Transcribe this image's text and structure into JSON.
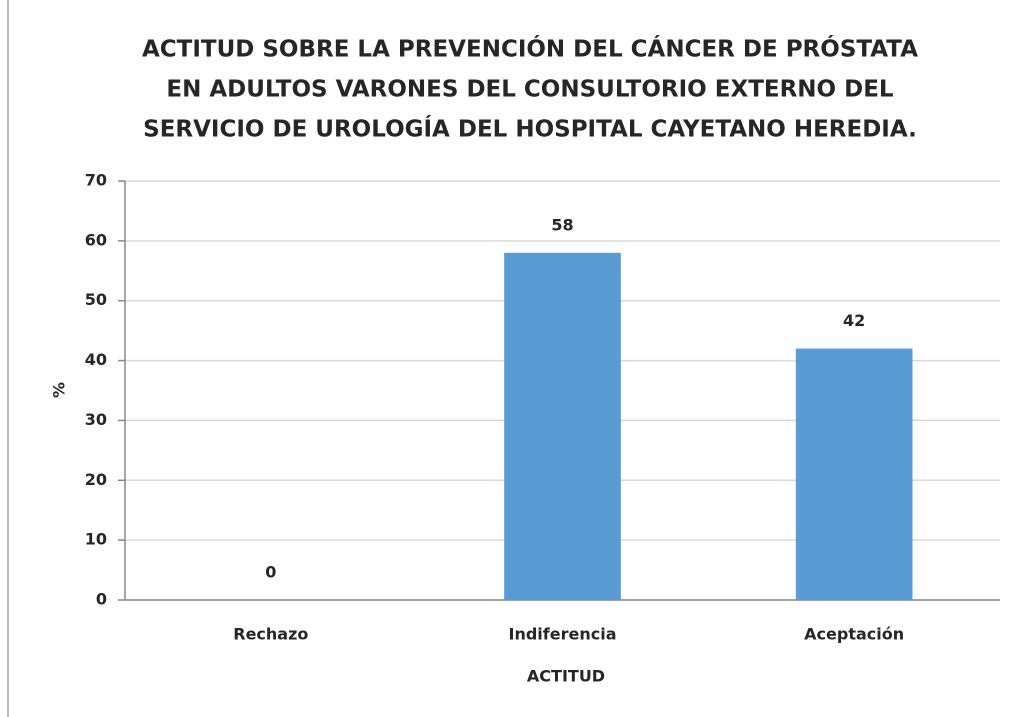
{
  "chart_data": {
    "type": "bar",
    "title": [
      "ACTITUD SOBRE LA PREVENCIÓN DEL CÁNCER DE PRÓSTATA",
      "EN ADULTOS VARONES DEL CONSULTORIO EXTERNO DEL",
      "SERVICIO DE UROLOGÍA DEL HOSPITAL CAYETANO HEREDIA."
    ],
    "x_label": "ACTITUD",
    "y_label": "%",
    "categories": [
      "Rechazo",
      "Indiferencia",
      "Aceptación"
    ],
    "values": [
      0,
      58,
      42
    ],
    "color": "#5b9bd5",
    "ylim": [
      0,
      70
    ],
    "yticks": [
      0,
      10,
      20,
      30,
      40,
      50,
      60,
      70
    ],
    "grid": true
  }
}
